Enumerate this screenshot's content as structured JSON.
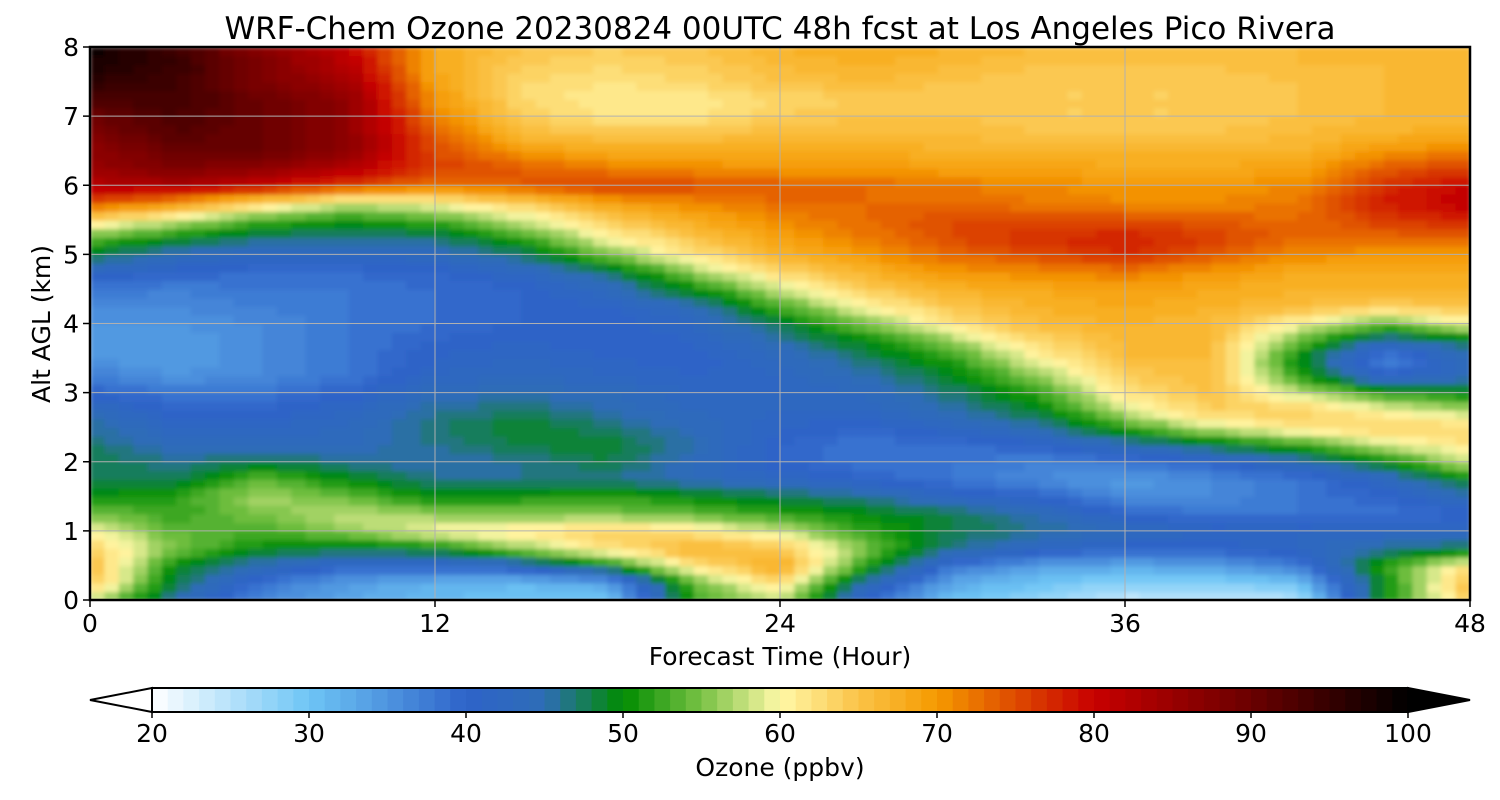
{
  "chart_data": {
    "type": "heatmap",
    "title": "WRF-Chem Ozone  20230824 00UTC 48h fcst at Los Angeles Pico Rivera",
    "xlabel": "Forecast Time (Hour)",
    "ylabel": "Alt AGL (km)",
    "xlim": [
      0,
      48
    ],
    "ylim": [
      0,
      8
    ],
    "xticks": [
      "0",
      "12",
      "24",
      "36",
      "48"
    ],
    "yticks": [
      "0",
      "1",
      "2",
      "3",
      "4",
      "5",
      "6",
      "7",
      "8"
    ],
    "grid": true,
    "x": [
      0,
      3,
      6,
      9,
      12,
      15,
      18,
      21,
      24,
      27,
      30,
      33,
      36,
      39,
      42,
      45,
      48
    ],
    "y": [
      0,
      0.25,
      0.5,
      0.75,
      1,
      1.25,
      1.5,
      1.75,
      2,
      2.25,
      2.5,
      2.75,
      3,
      3.25,
      3.5,
      3.75,
      4,
      4.25,
      4.5,
      4.75,
      5,
      5.25,
      5.5,
      5.75,
      6,
      6.25,
      6.5,
      6.75,
      7,
      7.25,
      7.5,
      7.75,
      8
    ],
    "values": [
      [
        58,
        45,
        36,
        33,
        31,
        30,
        30,
        52,
        57,
        40,
        30,
        27,
        24,
        24,
        25,
        50,
        64
      ],
      [
        65,
        48,
        38,
        34,
        32,
        31,
        33,
        54,
        63,
        44,
        33,
        30,
        28,
        28,
        30,
        50,
        66
      ],
      [
        66,
        50,
        44,
        40,
        40,
        42,
        50,
        62,
        68,
        52,
        38,
        34,
        33,
        34,
        37,
        52,
        62
      ],
      [
        64,
        55,
        50,
        48,
        50,
        56,
        62,
        67,
        65,
        55,
        46,
        42,
        40,
        40,
        42,
        46,
        48
      ],
      [
        60,
        54,
        53,
        56,
        60,
        62,
        64,
        62,
        58,
        52,
        48,
        46,
        44,
        42,
        42,
        42,
        42
      ],
      [
        55,
        52,
        55,
        58,
        56,
        55,
        55,
        54,
        52,
        50,
        48,
        45,
        40,
        38,
        38,
        38,
        40
      ],
      [
        50,
        52,
        57,
        54,
        50,
        51,
        52,
        50,
        48,
        46,
        42,
        40,
        36,
        36,
        38,
        40,
        44
      ],
      [
        48,
        48,
        54,
        50,
        46,
        46,
        46,
        44,
        42,
        40,
        38,
        36,
        34,
        36,
        38,
        42,
        50
      ],
      [
        48,
        46,
        48,
        46,
        45,
        46,
        48,
        44,
        40,
        38,
        38,
        37,
        38,
        40,
        44,
        50,
        58
      ],
      [
        47,
        44,
        44,
        44,
        46,
        48,
        49,
        45,
        40,
        38,
        39,
        40,
        44,
        48,
        52,
        58,
        62
      ],
      [
        46,
        42,
        42,
        43,
        47,
        49,
        47,
        44,
        41,
        40,
        42,
        45,
        52,
        58,
        62,
        64,
        63
      ],
      [
        44,
        40,
        40,
        42,
        46,
        47,
        45,
        43,
        42,
        42,
        45,
        49,
        58,
        64,
        64,
        60,
        57
      ],
      [
        40,
        38,
        38,
        40,
        44,
        45,
        44,
        42,
        42,
        43,
        47,
        52,
        62,
        65,
        58,
        52,
        50
      ],
      [
        37,
        35,
        36,
        38,
        42,
        43,
        42,
        41,
        42,
        45,
        49,
        56,
        64,
        66,
        52,
        40,
        44
      ],
      [
        35,
        34,
        36,
        38,
        41,
        42,
        41,
        40,
        43,
        47,
        52,
        60,
        66,
        66,
        50,
        36,
        44
      ],
      [
        34,
        34,
        36,
        38,
        40,
        41,
        40,
        41,
        45,
        50,
        56,
        63,
        66,
        66,
        54,
        44,
        48
      ],
      [
        35,
        35,
        36,
        38,
        39,
        40,
        40,
        42,
        48,
        55,
        62,
        66,
        67,
        66,
        60,
        54,
        60
      ],
      [
        36,
        36,
        37,
        38,
        39,
        40,
        41,
        44,
        53,
        60,
        65,
        67,
        68,
        67,
        66,
        64,
        65
      ],
      [
        38,
        37,
        38,
        38,
        39,
        40,
        43,
        50,
        58,
        64,
        67,
        68,
        69,
        68,
        67,
        67,
        67
      ],
      [
        42,
        40,
        39,
        39,
        40,
        42,
        47,
        56,
        63,
        67,
        70,
        71,
        72,
        70,
        68,
        68,
        68
      ],
      [
        48,
        44,
        42,
        42,
        43,
        47,
        55,
        62,
        67,
        70,
        73,
        75,
        77,
        74,
        71,
        70,
        70
      ],
      [
        54,
        50,
        47,
        46,
        47,
        52,
        60,
        65,
        69,
        72,
        75,
        77,
        78,
        76,
        73,
        73,
        74
      ],
      [
        63,
        58,
        53,
        51,
        53,
        58,
        64,
        68,
        71,
        73,
        75,
        75,
        75,
        74,
        73,
        76,
        78
      ],
      [
        75,
        70,
        63,
        58,
        60,
        64,
        69,
        71,
        73,
        73,
        73,
        72,
        71,
        71,
        72,
        78,
        81
      ],
      [
        82,
        83,
        80,
        76,
        72,
        74,
        76,
        75,
        74,
        73,
        72,
        71,
        70,
        70,
        71,
        77,
        80
      ],
      [
        85,
        88,
        86,
        82,
        76,
        74,
        72,
        71,
        70,
        70,
        69,
        69,
        68,
        68,
        69,
        74,
        76
      ],
      [
        86,
        90,
        90,
        86,
        75,
        70,
        68,
        68,
        68,
        68,
        67,
        67,
        67,
        67,
        67,
        70,
        72
      ],
      [
        88,
        92,
        90,
        86,
        74,
        66,
        65,
        65,
        66,
        66,
        66,
        65,
        65,
        65,
        66,
        67,
        68
      ],
      [
        90,
        93,
        90,
        86,
        72,
        64,
        62,
        62,
        64,
        65,
        65,
        64,
        64,
        64,
        65,
        66,
        66
      ],
      [
        93,
        94,
        90,
        86,
        70,
        63,
        61,
        61,
        63,
        64,
        64,
        64,
        64,
        64,
        65,
        66,
        66
      ],
      [
        96,
        94,
        88,
        84,
        69,
        63,
        62,
        63,
        65,
        66,
        65,
        64,
        64,
        64,
        65,
        66,
        66
      ],
      [
        98,
        95,
        88,
        82,
        68,
        64,
        63,
        64,
        66,
        67,
        66,
        65,
        65,
        65,
        66,
        66,
        67
      ],
      [
        99,
        94,
        86,
        80,
        68,
        65,
        64,
        65,
        67,
        68,
        67,
        66,
        66,
        65,
        66,
        67,
        67
      ]
    ],
    "colorbar": {
      "label": "Ozone  (ppbv)",
      "min": 20,
      "max": 100,
      "step": 1,
      "extend": "both",
      "ticks": [
        "20",
        "30",
        "40",
        "50",
        "60",
        "70",
        "80",
        "90",
        "100"
      ],
      "stops": [
        {
          "v": 20,
          "c": "#ffffff"
        },
        {
          "v": 30,
          "c": "#6ec5f5"
        },
        {
          "v": 40,
          "c": "#2e63c9"
        },
        {
          "v": 45,
          "c": "#2e6db6"
        },
        {
          "v": 50,
          "c": "#008c00"
        },
        {
          "v": 55,
          "c": "#79c245"
        },
        {
          "v": 60,
          "c": "#fff8a8"
        },
        {
          "v": 65,
          "c": "#fbc347"
        },
        {
          "v": 70,
          "c": "#f59a00"
        },
        {
          "v": 75,
          "c": "#de4a00"
        },
        {
          "v": 80,
          "c": "#c80000"
        },
        {
          "v": 90,
          "c": "#6a0000"
        },
        {
          "v": 100,
          "c": "#000000"
        }
      ]
    }
  }
}
